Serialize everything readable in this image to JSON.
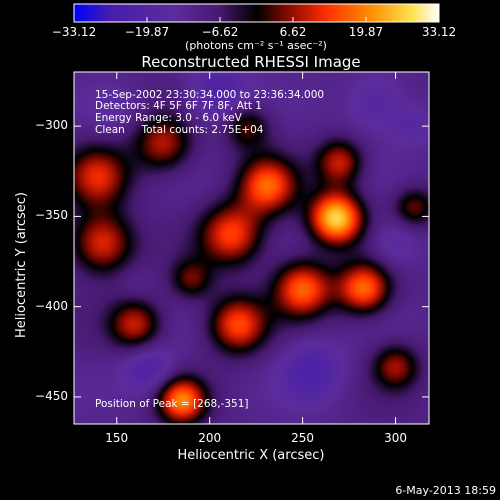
{
  "chart_data": {
    "type": "heatmap",
    "title": "Reconstructed RHESSI Image",
    "xlabel": "Heliocentric X (arcsec)",
    "ylabel": "Heliocentric Y (arcsec)",
    "xlim": [
      127,
      318
    ],
    "ylim": [
      -465,
      -270
    ],
    "x_ticks": [
      150,
      200,
      250,
      300
    ],
    "y_ticks": [
      -300,
      -350,
      -400,
      -450
    ],
    "colorbar": {
      "min": -33.12,
      "max": 33.12,
      "tick_values": [
        -33.12,
        -19.87,
        -6.62,
        6.62,
        19.87,
        33.12
      ],
      "tick_labels": [
        "−33.12",
        "−19.87",
        "−6.62",
        "6.62",
        "19.87",
        "33.12"
      ],
      "units": "(photons cm⁻² s⁻¹ asec⁻²)",
      "colors": [
        "#0000ff",
        "#4a22a8",
        "#5c2c9c",
        "#000000",
        "#a01000",
        "#ff3000",
        "#ff9000",
        "#ffe060",
        "#ffffff"
      ]
    },
    "annotations": [
      "15-Sep-2002 23:30:34.000 to 23:36:34.000",
      "Detectors: 4F 5F 6F 7F 8F, Att 1",
      "Energy Range: 3.0 - 6.0 keV",
      "Clean     Total counts: 2.75E+04"
    ],
    "peak_label": "Position of Peak = [268,-351]",
    "peak": {
      "x": 268,
      "y": -351,
      "value": 33.12
    },
    "blobs": [
      {
        "x": 268,
        "y": -351,
        "amp": 33,
        "s": 10
      },
      {
        "x": 250,
        "y": -390,
        "amp": 22,
        "s": 11
      },
      {
        "x": 231,
        "y": -333,
        "amp": 21,
        "s": 11
      },
      {
        "x": 212,
        "y": -360,
        "amp": 19,
        "s": 12
      },
      {
        "x": 283,
        "y": -390,
        "amp": 23,
        "s": 10
      },
      {
        "x": 142,
        "y": -365,
        "amp": 18,
        "s": 12
      },
      {
        "x": 140,
        "y": -328,
        "amp": 15,
        "s": 12
      },
      {
        "x": 175,
        "y": -310,
        "amp": 14,
        "s": 11
      },
      {
        "x": 270,
        "y": -320,
        "amp": 15,
        "s": 9
      },
      {
        "x": 215,
        "y": -410,
        "amp": 20,
        "s": 11
      },
      {
        "x": 160,
        "y": -410,
        "amp": 15,
        "s": 10
      },
      {
        "x": 185,
        "y": -452,
        "amp": 24,
        "s": 9
      },
      {
        "x": 220,
        "y": -300,
        "amp": 10,
        "s": 9
      },
      {
        "x": 300,
        "y": -433,
        "amp": 12,
        "s": 9
      },
      {
        "x": 310,
        "y": -345,
        "amp": 10,
        "s": 8
      },
      {
        "x": 190,
        "y": -385,
        "amp": 9,
        "s": 8
      },
      {
        "x": 167,
        "y": -435,
        "amp": -17,
        "s": 10
      },
      {
        "x": 205,
        "y": -282,
        "amp": -18,
        "s": 12
      },
      {
        "x": 290,
        "y": -287,
        "amp": -15,
        "s": 12
      },
      {
        "x": 300,
        "y": -365,
        "amp": -14,
        "s": 10
      },
      {
        "x": 255,
        "y": -435,
        "amp": -17,
        "s": 12
      },
      {
        "x": 148,
        "y": -290,
        "amp": -10,
        "s": 9
      },
      {
        "x": 160,
        "y": -388,
        "amp": -8,
        "s": 7
      },
      {
        "x": 310,
        "y": -300,
        "amp": -12,
        "s": 8
      }
    ]
  },
  "footer": {
    "date": "6-May-2013 18:59"
  }
}
